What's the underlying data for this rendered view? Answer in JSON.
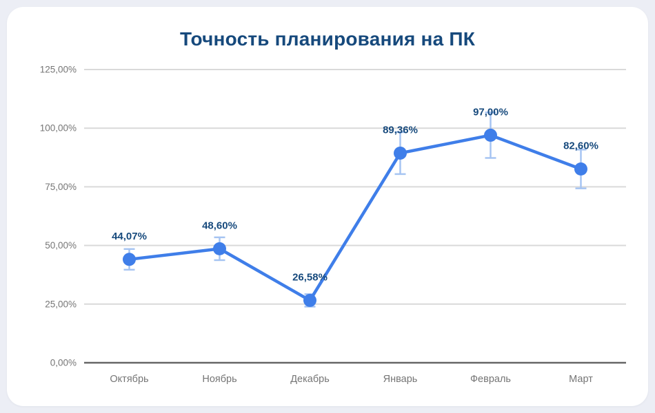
{
  "page": {
    "background_color": "#eceef5",
    "card_color": "#ffffff"
  },
  "chart": {
    "title": "Точность планирования на ПК"
  },
  "chart_data": {
    "type": "line",
    "title": "Точность планирования на ПК",
    "categories": [
      "Октябрь",
      "Ноябрь",
      "Декабрь",
      "Январь",
      "Февраль",
      "Март"
    ],
    "values": [
      44.07,
      48.6,
      26.58,
      89.36,
      97.0,
      82.6
    ],
    "point_labels": [
      "44,07%",
      "48,60%",
      "26,58%",
      "89,36%",
      "97,00%",
      "82,60%"
    ],
    "error_bars": {
      "type": "percent",
      "value": 10
    },
    "xlabel": "",
    "ylabel": "",
    "y_axis": {
      "min": 0,
      "max": 125,
      "tick_step": 25,
      "tick_labels": [
        "0,00%",
        "25,00%",
        "50,00%",
        "75,00%",
        "100,00%",
        "125,00%"
      ]
    },
    "grid": true,
    "legend": "none",
    "colors": {
      "series": "#3f7ee9",
      "error_bar": "#a6c4f2",
      "data_label": "#174a7d",
      "title": "#16497c",
      "axis_label": "#757575",
      "gridline": "#d9d9d9",
      "baseline": "#666666"
    }
  }
}
